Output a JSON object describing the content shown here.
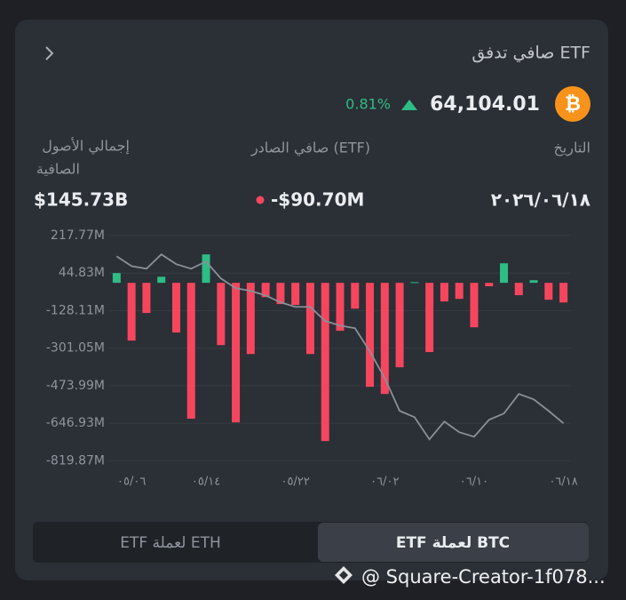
{
  "header": {
    "title": "صافي تدفق ETF",
    "price": "64,104.01",
    "change": "0.81%"
  },
  "stats": {
    "labels": [
      "التاريخ",
      "صافي الصادر (ETF)",
      "إجمالي الأصول",
      "الصافية"
    ],
    "date": "٢٠٢٦/٠٦/١٨",
    "net_flow": "-$90.70M",
    "total_assets": "$145.73B"
  },
  "chart_data": {
    "type": "bar",
    "categories": [
      null,
      "٠٥/٠٦",
      null,
      null,
      null,
      null,
      "٠٥/١٤",
      null,
      null,
      null,
      null,
      null,
      "٠٥/٢٢",
      null,
      null,
      null,
      null,
      null,
      "٠٦/٠٢",
      null,
      null,
      null,
      null,
      null,
      "٠٦/١٠",
      null,
      null,
      null,
      null,
      null,
      "٠٦/١٨"
    ],
    "series": [
      {
        "type": "bar",
        "positive_color": "#2ebd85",
        "negative_color": "#f6465d",
        "values": [
          45,
          -266,
          -139,
          28,
          -229,
          -626,
          131,
          -287,
          -643,
          -328,
          -66,
          -98,
          -102,
          -328,
          -729,
          -221,
          -119,
          -479,
          -512,
          -389,
          3,
          -319,
          -86,
          -74,
          -205,
          -16,
          90,
          -57,
          12,
          -78,
          -90.7
        ]
      },
      {
        "type": "line",
        "color": "#8a8f99",
        "values": [
          122,
          77,
          65,
          131,
          86,
          65,
          98,
          20,
          -25,
          -37,
          -58,
          -90,
          -111,
          -111,
          -176,
          -197,
          -209,
          -316,
          -439,
          -590,
          -619,
          -721,
          -639,
          -688,
          -709,
          -631,
          -602,
          -512,
          -537,
          -590,
          -647
        ]
      }
    ],
    "ylim": [
      -880,
      250
    ],
    "yticks": [
      {
        "value": 217.77,
        "label": "217.77M"
      },
      {
        "value": 44.83,
        "label": "44.83M"
      },
      {
        "value": -128.11,
        "label": "-128.11M"
      },
      {
        "value": -301.05,
        "label": "-301.05M"
      },
      {
        "value": -473.99,
        "label": "-473.99M"
      },
      {
        "value": -646.93,
        "label": "-646.93M"
      },
      {
        "value": -819.87,
        "label": "-819.87M"
      }
    ],
    "grid": true
  },
  "tabs": [
    "ETF لعملة ETH",
    "ETF لعملة BTC"
  ],
  "watermark": "@ Square-Creator-1f078..."
}
